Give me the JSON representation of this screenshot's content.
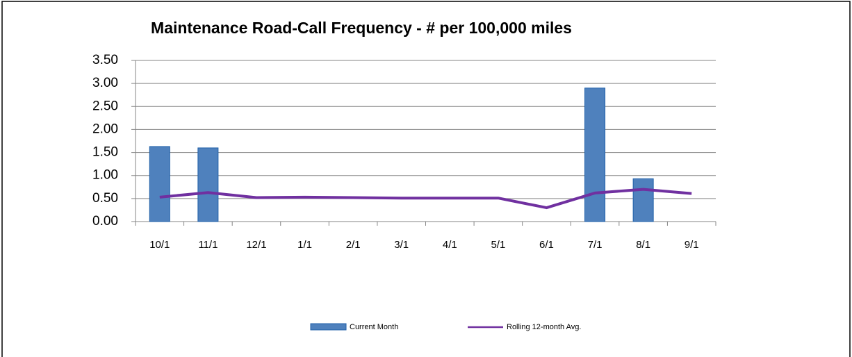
{
  "chart_data": {
    "type": "bar_line",
    "title": "Maintenance Road-Call Frequency - # per 100,000 miles",
    "categories": [
      "10/1",
      "11/1",
      "12/1",
      "1/1",
      "2/1",
      "3/1",
      "4/1",
      "5/1",
      "6/1",
      "7/1",
      "8/1",
      "9/1"
    ],
    "series": [
      {
        "name": "Current Month",
        "type": "bar",
        "color": "#4f81bd",
        "values": [
          1.63,
          1.6,
          null,
          null,
          null,
          null,
          null,
          null,
          null,
          2.9,
          0.93,
          null
        ]
      },
      {
        "name": "Rolling 12-month Avg.",
        "type": "line",
        "color": "#7030a0",
        "values": [
          0.53,
          0.63,
          0.52,
          0.53,
          0.52,
          0.51,
          0.51,
          0.51,
          0.3,
          0.62,
          0.7,
          0.61
        ]
      }
    ],
    "ylim": [
      0,
      3.5
    ],
    "yticks": [
      {
        "value": 0,
        "label": "0.00"
      },
      {
        "value": 0.5,
        "label": "0.50"
      },
      {
        "value": 1,
        "label": "1.00"
      },
      {
        "value": 1.5,
        "label": "1.50"
      },
      {
        "value": 2,
        "label": "2.00"
      },
      {
        "value": 2.5,
        "label": "2.50"
      },
      {
        "value": 3,
        "label": "3.00"
      },
      {
        "value": 3.5,
        "label": "3.50"
      }
    ],
    "grid": true,
    "legend": "bottom"
  }
}
